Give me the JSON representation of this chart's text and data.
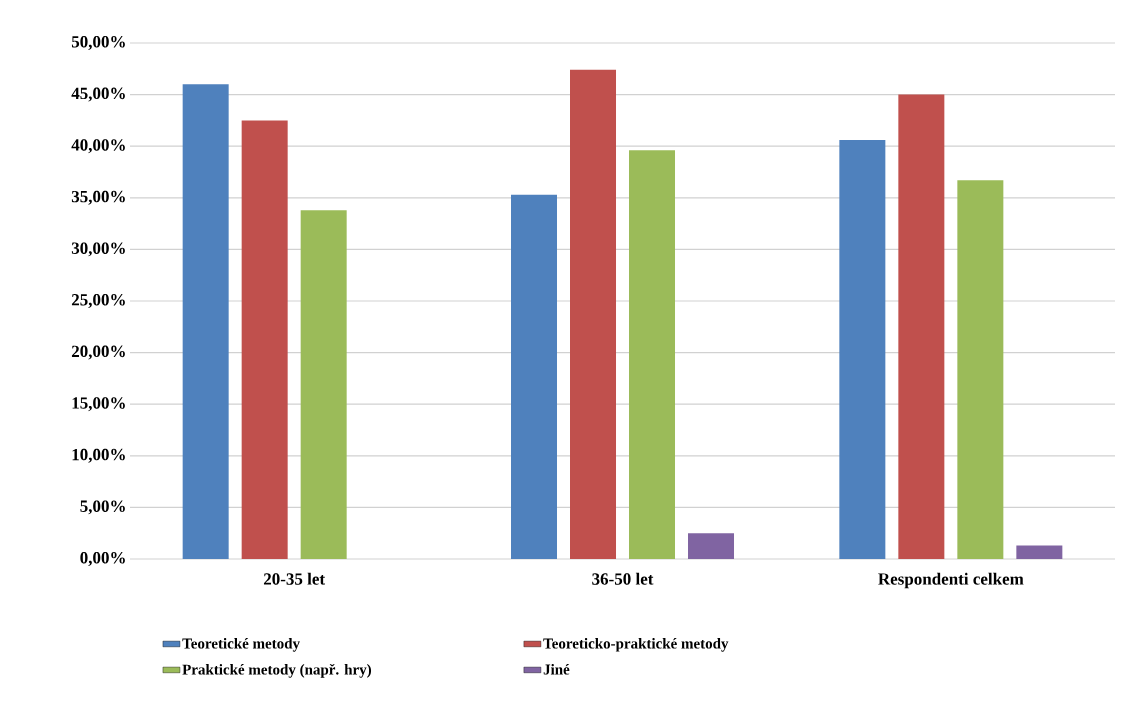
{
  "chart_data": {
    "type": "bar",
    "categories": [
      "20-35 let",
      "36-50 let",
      "Respondenti celkem"
    ],
    "series": [
      {
        "name": "Teoretické metody",
        "color": "#4f81bd",
        "values": [
          46.0,
          35.3,
          40.6
        ]
      },
      {
        "name": "Teoreticko-praktické metody",
        "color": "#c0504d",
        "values": [
          42.5,
          47.4,
          45.0
        ]
      },
      {
        "name": "Praktické metody (např. hry)",
        "color": "#9bbb59",
        "values": [
          33.8,
          39.6,
          36.7
        ]
      },
      {
        "name": "Jiné",
        "color": "#8064a2",
        "values": [
          0,
          2.5,
          1.3
        ]
      }
    ],
    "ylim": [
      0,
      50
    ],
    "yticks": [
      {
        "value": 0,
        "label": "0,00%"
      },
      {
        "value": 5,
        "label": "5,00%"
      },
      {
        "value": 10,
        "label": "10,00%"
      },
      {
        "value": 15,
        "label": "15,00%"
      },
      {
        "value": 20,
        "label": "20,00%"
      },
      {
        "value": 25,
        "label": "25,00%"
      },
      {
        "value": 30,
        "label": "30,00%"
      },
      {
        "value": 35,
        "label": "35,00%"
      },
      {
        "value": 40,
        "label": "40,00%"
      },
      {
        "value": 45,
        "label": "45,00%"
      },
      {
        "value": 50,
        "label": "50,00%"
      }
    ],
    "grid": "y",
    "legend": "bottom"
  }
}
